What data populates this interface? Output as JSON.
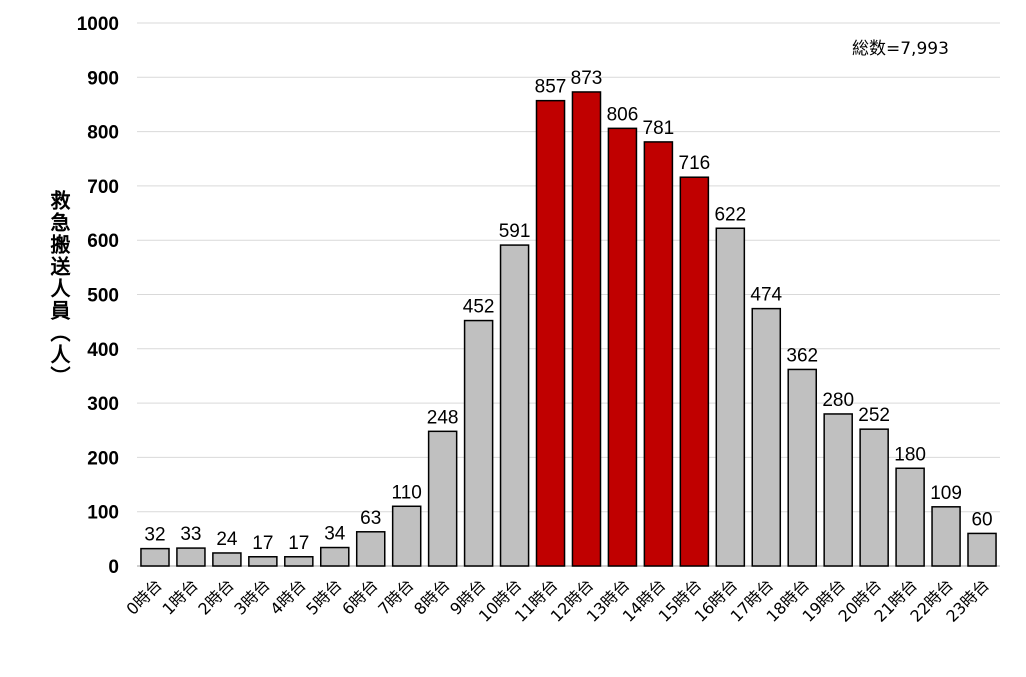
{
  "chart_data": {
    "type": "bar",
    "title": "",
    "xlabel": "",
    "ylabel": "救急搬送人員（人）",
    "annotation": "総数=7,993",
    "ylim": [
      0,
      1000
    ],
    "yticks": [
      0,
      100,
      200,
      300,
      400,
      500,
      600,
      700,
      800,
      900,
      1000
    ],
    "grid": true,
    "categories": [
      "0時台",
      "1時台",
      "2時台",
      "3時台",
      "4時台",
      "5時台",
      "6時台",
      "7時台",
      "8時台",
      "9時台",
      "10時台",
      "11時台",
      "12時台",
      "13時台",
      "14時台",
      "15時台",
      "16時台",
      "17時台",
      "18時台",
      "19時台",
      "20時台",
      "21時台",
      "22時台",
      "23時台"
    ],
    "values": [
      32,
      33,
      24,
      17,
      17,
      34,
      63,
      110,
      248,
      452,
      591,
      857,
      873,
      806,
      781,
      716,
      622,
      474,
      362,
      280,
      252,
      180,
      109,
      60
    ],
    "highlighted": [
      false,
      false,
      false,
      false,
      false,
      false,
      false,
      false,
      false,
      false,
      false,
      true,
      true,
      true,
      true,
      true,
      false,
      false,
      false,
      false,
      false,
      false,
      false,
      false
    ],
    "colors": {
      "normal": "#c0c0c0",
      "highlight": "#c00000",
      "outline": "#000000",
      "grid": "#d9d9d9"
    }
  }
}
